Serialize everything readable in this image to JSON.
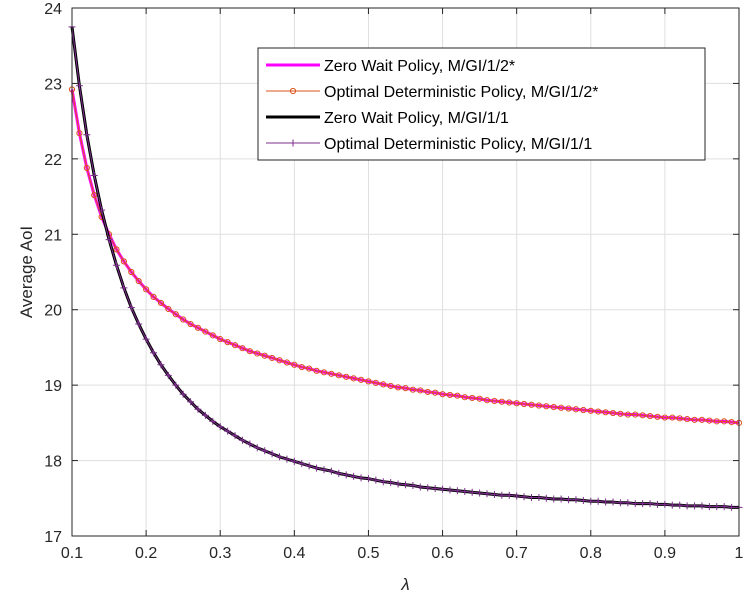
{
  "chart_data": {
    "type": "line",
    "title": "",
    "xlabel": "λ",
    "ylabel": "Average AoI",
    "xlim": [
      0.1,
      1
    ],
    "ylim": [
      17,
      24
    ],
    "xticks": [
      0.1,
      0.2,
      0.3,
      0.4,
      0.5,
      0.6,
      0.7,
      0.8,
      0.9,
      1
    ],
    "xtick_labels": [
      "0.1",
      "0.2",
      "0.3",
      "0.4",
      "0.5",
      "0.6",
      "0.7",
      "0.8",
      "0.9",
      "1"
    ],
    "yticks": [
      17,
      18,
      19,
      20,
      21,
      22,
      23,
      24
    ],
    "ytick_labels": [
      "17",
      "18",
      "19",
      "20",
      "21",
      "22",
      "23",
      "24"
    ],
    "grid": true,
    "legend_position": "top-right",
    "x": [
      0.1,
      0.11,
      0.12,
      0.13,
      0.14,
      0.15,
      0.16,
      0.17,
      0.18,
      0.19,
      0.2,
      0.21,
      0.22,
      0.23,
      0.24,
      0.25,
      0.26,
      0.27,
      0.28,
      0.29,
      0.3,
      0.31,
      0.32,
      0.33,
      0.34,
      0.35,
      0.36,
      0.37,
      0.38,
      0.39,
      0.4,
      0.41,
      0.42,
      0.43,
      0.44,
      0.45,
      0.46,
      0.47,
      0.48,
      0.49,
      0.5,
      0.51,
      0.52,
      0.53,
      0.54,
      0.55,
      0.56,
      0.57,
      0.58,
      0.59,
      0.6,
      0.61,
      0.62,
      0.63,
      0.64,
      0.65,
      0.66,
      0.67,
      0.68,
      0.69,
      0.7,
      0.71,
      0.72,
      0.73,
      0.74,
      0.75,
      0.76,
      0.77,
      0.78,
      0.79,
      0.8,
      0.81,
      0.82,
      0.83,
      0.84,
      0.85,
      0.86,
      0.87,
      0.88,
      0.89,
      0.9,
      0.91,
      0.92,
      0.93,
      0.94,
      0.95,
      0.96,
      0.97,
      0.98,
      0.99,
      1.0
    ],
    "series": [
      {
        "name": "Zero Wait Policy, M/GI/1/2*",
        "color": "#ff00ff",
        "marker": "none",
        "values": [
          22.92,
          22.34,
          21.88,
          21.52,
          21.23,
          21.0,
          20.8,
          20.64,
          20.5,
          20.38,
          20.27,
          20.17,
          20.09,
          20.01,
          19.94,
          19.87,
          19.81,
          19.76,
          19.71,
          19.66,
          19.61,
          19.57,
          19.53,
          19.49,
          19.45,
          19.42,
          19.39,
          19.36,
          19.33,
          19.3,
          19.27,
          19.24,
          19.22,
          19.19,
          19.17,
          19.15,
          19.13,
          19.11,
          19.09,
          19.07,
          19.05,
          19.03,
          19.01,
          18.99,
          18.97,
          18.96,
          18.94,
          18.93,
          18.91,
          18.9,
          18.88,
          18.87,
          18.86,
          18.84,
          18.83,
          18.82,
          18.8,
          18.79,
          18.78,
          18.77,
          18.76,
          18.75,
          18.74,
          18.73,
          18.72,
          18.71,
          18.7,
          18.69,
          18.68,
          18.67,
          18.66,
          18.65,
          18.64,
          18.63,
          18.62,
          18.61,
          18.61,
          18.6,
          18.59,
          18.58,
          18.57,
          18.57,
          18.56,
          18.55,
          18.54,
          18.54,
          18.53,
          18.52,
          18.52,
          18.51,
          18.5
        ]
      },
      {
        "name": "Optimal Deterministic Policy, M/GI/1/2*",
        "color": "#d95319",
        "marker": "circle",
        "values": [
          22.92,
          22.34,
          21.88,
          21.52,
          21.23,
          21.0,
          20.8,
          20.64,
          20.5,
          20.38,
          20.27,
          20.17,
          20.09,
          20.01,
          19.94,
          19.87,
          19.81,
          19.76,
          19.71,
          19.66,
          19.61,
          19.57,
          19.53,
          19.49,
          19.45,
          19.42,
          19.39,
          19.36,
          19.33,
          19.3,
          19.27,
          19.24,
          19.22,
          19.19,
          19.17,
          19.15,
          19.13,
          19.11,
          19.09,
          19.07,
          19.05,
          19.03,
          19.01,
          18.99,
          18.97,
          18.96,
          18.94,
          18.93,
          18.91,
          18.9,
          18.88,
          18.87,
          18.86,
          18.84,
          18.83,
          18.82,
          18.8,
          18.79,
          18.78,
          18.77,
          18.76,
          18.75,
          18.74,
          18.73,
          18.72,
          18.71,
          18.7,
          18.69,
          18.68,
          18.67,
          18.66,
          18.65,
          18.64,
          18.63,
          18.62,
          18.61,
          18.61,
          18.6,
          18.59,
          18.58,
          18.57,
          18.57,
          18.56,
          18.55,
          18.54,
          18.54,
          18.53,
          18.52,
          18.52,
          18.51,
          18.5
        ]
      },
      {
        "name": "Zero Wait Policy, M/GI/1/1",
        "color": "#000000",
        "marker": "none",
        "values": [
          23.75,
          22.97,
          22.32,
          21.78,
          21.32,
          20.93,
          20.59,
          20.29,
          20.03,
          19.81,
          19.61,
          19.43,
          19.27,
          19.13,
          19.0,
          18.88,
          18.78,
          18.68,
          18.6,
          18.52,
          18.45,
          18.39,
          18.33,
          18.27,
          18.22,
          18.17,
          18.13,
          18.09,
          18.05,
          18.02,
          17.99,
          17.96,
          17.93,
          17.9,
          17.88,
          17.86,
          17.83,
          17.81,
          17.79,
          17.77,
          17.76,
          17.74,
          17.72,
          17.71,
          17.69,
          17.68,
          17.67,
          17.65,
          17.64,
          17.63,
          17.62,
          17.61,
          17.6,
          17.59,
          17.58,
          17.57,
          17.56,
          17.55,
          17.54,
          17.54,
          17.53,
          17.52,
          17.51,
          17.51,
          17.5,
          17.49,
          17.49,
          17.48,
          17.48,
          17.47,
          17.46,
          17.46,
          17.45,
          17.45,
          17.44,
          17.44,
          17.43,
          17.43,
          17.43,
          17.42,
          17.42,
          17.41,
          17.41,
          17.4,
          17.4,
          17.4,
          17.39,
          17.39,
          17.39,
          17.38,
          17.38
        ]
      },
      {
        "name": "Optimal Deterministic Policy, M/GI/1/1",
        "color": "#7e2f8e",
        "marker": "plus",
        "values": [
          23.75,
          22.97,
          22.32,
          21.78,
          21.32,
          20.93,
          20.59,
          20.29,
          20.03,
          19.81,
          19.61,
          19.43,
          19.27,
          19.13,
          19.0,
          18.88,
          18.78,
          18.68,
          18.6,
          18.52,
          18.45,
          18.39,
          18.33,
          18.27,
          18.22,
          18.17,
          18.13,
          18.09,
          18.05,
          18.02,
          17.99,
          17.96,
          17.93,
          17.9,
          17.88,
          17.86,
          17.83,
          17.81,
          17.79,
          17.77,
          17.76,
          17.74,
          17.72,
          17.71,
          17.69,
          17.68,
          17.67,
          17.65,
          17.64,
          17.63,
          17.62,
          17.61,
          17.6,
          17.59,
          17.58,
          17.57,
          17.56,
          17.55,
          17.54,
          17.54,
          17.53,
          17.52,
          17.51,
          17.51,
          17.5,
          17.49,
          17.49,
          17.48,
          17.48,
          17.47,
          17.46,
          17.46,
          17.45,
          17.45,
          17.44,
          17.44,
          17.43,
          17.43,
          17.43,
          17.42,
          17.42,
          17.41,
          17.41,
          17.4,
          17.4,
          17.4,
          17.39,
          17.39,
          17.39,
          17.38,
          17.38
        ]
      }
    ]
  }
}
